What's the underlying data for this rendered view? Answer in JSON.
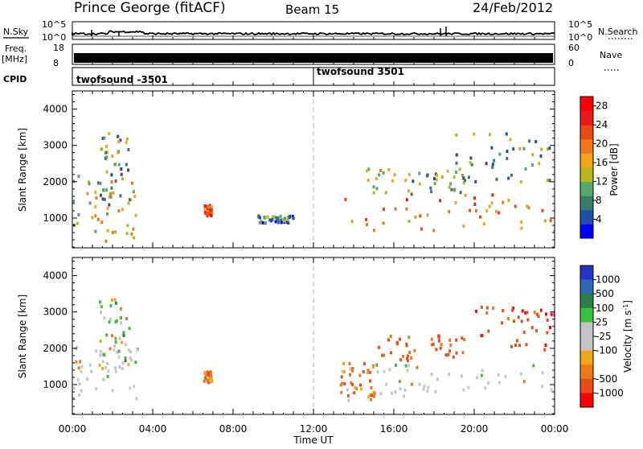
{
  "header": {
    "station": "Prince George (fitACF)",
    "beam": "Beam 15",
    "date": "24/Feb/2012"
  },
  "top_panels": {
    "nsky_label": "N.Sky",
    "nsky_ticks": [
      "10^5",
      "10^0"
    ],
    "nsearch_label": "N.Search",
    "nsearch_ticks": [
      "10^5",
      "10^0"
    ],
    "freq_label_1": "Freq.",
    "freq_label_2": "[MHz]",
    "freq_ticks": [
      "18",
      "8"
    ],
    "nave_label": "Nave",
    "nave_ticks": [
      "60",
      "0"
    ],
    "cpid_label": "CPID",
    "cpid_segments": [
      "twofsound -3501",
      "twofsound 3501"
    ]
  },
  "colors": {
    "power_scale": [
      "#0000ff",
      "#1e4fa6",
      "#3c7a6a",
      "#55a869",
      "#b8b81d",
      "#f0a51a",
      "#f07818",
      "#e84a10",
      "#e61c1c",
      "#ff0000"
    ],
    "velocity_scale": [
      "#2434c8",
      "#2b6ab2",
      "#2c7e46",
      "#38c23a",
      "#c4c4c4",
      "#c4c4c4",
      "#f0a818",
      "#e87a18",
      "#e84c18",
      "#ff0000"
    ],
    "ground_scatter": "#c8c8c8"
  },
  "chart_data": [
    {
      "type": "heatmap",
      "panel": "power",
      "title": "",
      "xlabel": "Time UT",
      "ylabel": "Slant Range [km]",
      "x_ticks": [
        "00:00",
        "04:00",
        "08:00",
        "12:00",
        "16:00",
        "20:00",
        "00:00"
      ],
      "y_ticks": [
        "1000",
        "2000",
        "3000",
        "4000"
      ],
      "xlim_hours": [
        0,
        24
      ],
      "ylim_km": [
        180,
        4500
      ],
      "colorbar_label": "Power [dB]",
      "colorbar_ticks": [
        "4",
        "8",
        "12",
        "16",
        "20",
        "24",
        "28"
      ],
      "colorbar_range": [
        0,
        30
      ],
      "marker_line_hour": 12,
      "echo_regions": [
        {
          "t0": 0.0,
          "t1": 3.3,
          "r0": 400,
          "r1": 2200,
          "value": 14
        },
        {
          "t0": 1.3,
          "t1": 2.8,
          "r0": 1400,
          "r1": 3400,
          "value": 10
        },
        {
          "t0": 6.5,
          "t1": 6.9,
          "r0": 1100,
          "r1": 1400,
          "value": 22
        },
        {
          "t0": 9.2,
          "t1": 11.0,
          "r0": 900,
          "r1": 1100,
          "value": 8
        },
        {
          "t0": 13.3,
          "t1": 24.0,
          "r0": 650,
          "r1": 1700,
          "value": 20
        },
        {
          "t0": 14.5,
          "t1": 19.5,
          "r0": 1700,
          "r1": 2400,
          "value": 12
        },
        {
          "t0": 19.0,
          "t1": 24.0,
          "r0": 2000,
          "r1": 3400,
          "value": 10
        }
      ]
    },
    {
      "type": "heatmap",
      "panel": "velocity",
      "title": "",
      "xlabel": "Time UT",
      "ylabel": "Slant Range [km]",
      "x_ticks": [
        "00:00",
        "04:00",
        "08:00",
        "12:00",
        "16:00",
        "20:00",
        "00:00"
      ],
      "y_ticks": [
        "1000",
        "2000",
        "3000",
        "4000"
      ],
      "xlim_hours": [
        0,
        24
      ],
      "ylim_km": [
        180,
        4500
      ],
      "colorbar_label": "Velocity [m s",
      "colorbar_unit_sup": "-1",
      "colorbar_ticks": [
        "1000",
        "500",
        "100",
        "25",
        "-25",
        "-100",
        "-500",
        "-1000"
      ],
      "marker_line_hour": 12,
      "echo_regions": [
        {
          "t0": 0.0,
          "t1": 3.3,
          "r0": 600,
          "r1": 2200,
          "value": 0
        },
        {
          "t0": 1.3,
          "t1": 2.8,
          "r0": 1400,
          "r1": 3400,
          "value": 60
        },
        {
          "t0": 6.5,
          "t1": 6.9,
          "r0": 1100,
          "r1": 1400,
          "value": -150
        },
        {
          "t0": 13.3,
          "t1": 15.0,
          "r0": 600,
          "r1": 1700,
          "value": -200
        },
        {
          "t0": 15.0,
          "t1": 24.0,
          "r0": 700,
          "r1": 1600,
          "value": 0
        },
        {
          "t0": 15.0,
          "t1": 19.5,
          "r0": 1700,
          "r1": 2400,
          "value": -300
        },
        {
          "t0": 20.0,
          "t1": 24.0,
          "r0": 2000,
          "r1": 3200,
          "value": -400
        }
      ]
    }
  ]
}
